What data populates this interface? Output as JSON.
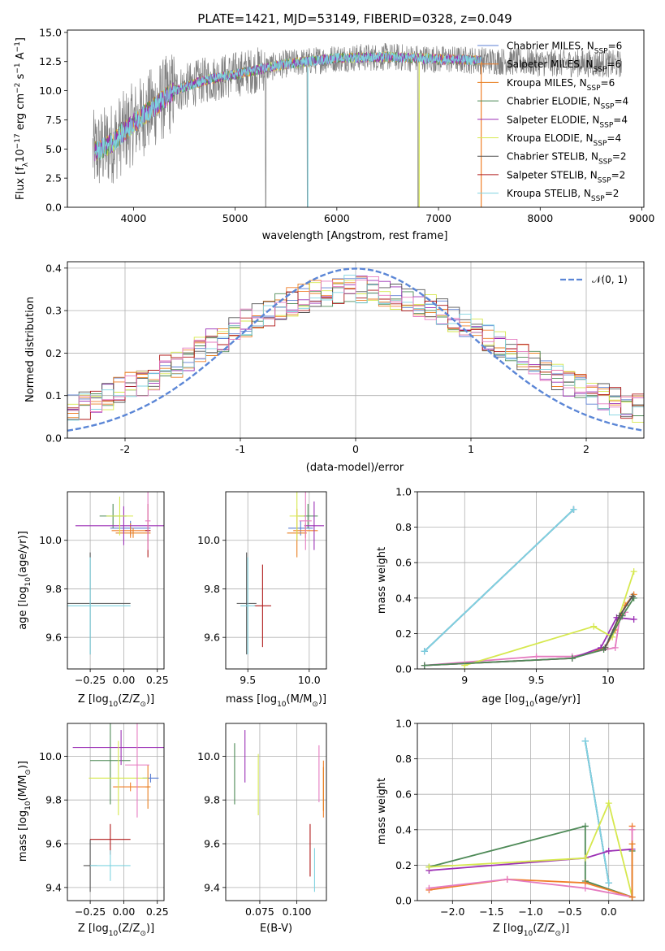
{
  "figure_title": "PLATE=1421, MJD=53149, FIBERID=0328, z=0.049",
  "legend_labels": [
    {
      "base": "Chabrier MILES, N",
      "sub": "SSP",
      "eq": "=6"
    },
    {
      "base": "Salpeter MILES, N",
      "sub": "SSP",
      "eq": "=6"
    },
    {
      "base": "Kroupa MILES, N",
      "sub": "SSP",
      "eq": "=6"
    },
    {
      "base": "Chabrier ELODIE, N",
      "sub": "SSP",
      "eq": "=4"
    },
    {
      "base": "Salpeter ELODIE, N",
      "sub": "SSP",
      "eq": "=4"
    },
    {
      "base": "Kroupa ELODIE, N",
      "sub": "SSP",
      "eq": "=4"
    },
    {
      "base": "Chabrier STELIB, N",
      "sub": "SSP",
      "eq": "=2"
    },
    {
      "base": "Salpeter STELIB, N",
      "sub": "SSP",
      "eq": "=2"
    },
    {
      "base": "Kroupa STELIB, N",
      "sub": "SSP",
      "eq": "=2"
    }
  ],
  "colors": {
    "chabrier_miles": "#5b7fd3",
    "salpeter_miles": "#f07f2a",
    "kroupa_miles": "#e87f20",
    "chabrier_elodie": "#4e8a57",
    "salpeter_elodie": "#9b2fb5",
    "kroupa_elodie": "#d6e84e",
    "chabrier_stelib": "#555555",
    "salpeter_stelib": "#b01a1a",
    "kroupa_stelib": "#7fd3e0",
    "pink": "#e57bc0",
    "observed": "#808080",
    "gaussian": "#5b86d6",
    "grid": "#b0b0b0"
  },
  "chart_data": [
    {
      "id": "spectrum",
      "type": "line",
      "title": "PLATE=1421, MJD=53149, FIBERID=0328, z=0.049",
      "xlabel": "wavelength [Angstrom, rest frame]",
      "ylabel": {
        "pre": "Flux [f",
        "sub": "λ",
        "mid": "10",
        "sup": "−17",
        "post": " erg cm",
        "sup2": "−2",
        "post2": " s",
        "sup3": "−1",
        "post3": " A",
        "sup4": "−1",
        "post4": "]"
      },
      "xlim": [
        3350,
        9020
      ],
      "ylim": [
        0,
        15.2
      ],
      "xticks": [
        4000,
        5000,
        6000,
        7000,
        8000,
        9000
      ],
      "yticks": [
        0.0,
        2.5,
        5.0,
        7.5,
        10.0,
        12.5,
        15.0
      ],
      "ytick_labels": [
        "0.0",
        "2.5",
        "5.0",
        "7.5",
        "10.0",
        "12.5",
        "15.0"
      ],
      "grid": false,
      "legend_position": "right",
      "observed_x_range": [
        3600,
        8800
      ],
      "model_x_range": [
        3620,
        7420
      ],
      "continuum": [
        [
          3650,
          4.8
        ],
        [
          3800,
          5.6
        ],
        [
          4000,
          7.2
        ],
        [
          4200,
          8.6
        ],
        [
          4400,
          10.0
        ],
        [
          4700,
          10.9
        ],
        [
          5000,
          11.4
        ],
        [
          5500,
          12.3
        ],
        [
          6000,
          12.8
        ],
        [
          6500,
          12.9
        ],
        [
          7000,
          12.7
        ],
        [
          7400,
          12.6
        ],
        [
          8000,
          12.4
        ],
        [
          8700,
          12.3
        ]
      ]
    },
    {
      "id": "residuals",
      "type": "histogram",
      "xlabel": "(data-model)/error",
      "ylabel": "Normed distribution",
      "xlim": [
        -2.5,
        2.5
      ],
      "ylim": [
        0,
        0.415
      ],
      "xticks": [
        -2,
        -1,
        0,
        1,
        2
      ],
      "yticks": [
        0.0,
        0.1,
        0.2,
        0.3,
        0.4
      ],
      "ytick_labels": [
        "0.0",
        "0.1",
        "0.2",
        "0.3",
        "0.4"
      ],
      "grid": true,
      "legend_position": "upper right",
      "legend_label": "𝒩(0, 1)",
      "bins": 50
    },
    {
      "id": "age_vs_Z",
      "type": "scatter",
      "xlabel": {
        "pre": "Z [log",
        "sub": "10",
        "post": "(Z/Z",
        "sub2": "⊙",
        "post2": ")]"
      },
      "ylabel": {
        "pre": "age  [log",
        "sub": "10",
        "post": "(age/yr)]"
      },
      "xlim": [
        -0.42,
        0.3
      ],
      "ylim": [
        9.47,
        10.2
      ],
      "xticks": [
        -0.25,
        0.0,
        0.25
      ],
      "xtick_labels": [
        "−0.25",
        "0.00",
        "0.25"
      ],
      "yticks": [
        9.6,
        9.8,
        10.0
      ],
      "grid": true,
      "points": [
        {
          "c": "chabrier_miles",
          "x": 0.05,
          "y": 10.05,
          "xe": 0.15,
          "ye": 0.03
        },
        {
          "c": "salpeter_miles",
          "x": 0.05,
          "y": 10.04,
          "xe": 0.14,
          "ye": 0.03
        },
        {
          "c": "kroupa_miles",
          "x": 0.07,
          "y": 10.03,
          "xe": 0.13,
          "ye": 0.02
        },
        {
          "c": "chabrier_elodie",
          "x": -0.08,
          "y": 10.1,
          "xe": 0.1,
          "ye": 0.05
        },
        {
          "c": "salpeter_elodie",
          "x": 0.0,
          "y": 10.06,
          "xe": 0.36,
          "ye": 0.08
        },
        {
          "c": "kroupa_elodie",
          "x": -0.03,
          "y": 10.1,
          "xe": 0.1,
          "ye": 0.08
        },
        {
          "c": "chabrier_stelib",
          "x": -0.25,
          "y": 9.74,
          "xe": 0.3,
          "ye": 0.21
        },
        {
          "c": "salpeter_stelib",
          "x": 0.18,
          "y": 10.04,
          "xe": 0.02,
          "ye": 0.11
        },
        {
          "c": "kroupa_stelib",
          "x": -0.25,
          "y": 9.73,
          "xe": 0.3,
          "ye": 0.2
        },
        {
          "c": "pink",
          "x": 0.18,
          "y": 10.08,
          "xe": 0.02,
          "ye": 0.12
        }
      ]
    },
    {
      "id": "age_vs_mass",
      "type": "scatter",
      "xlabel": {
        "pre": "mass [log",
        "sub": "10",
        "post": "(M/M",
        "sub2": "⊙",
        "post2": ")]"
      },
      "ylabel": "",
      "xlim": [
        9.32,
        10.14
      ],
      "ylim": [
        9.47,
        10.2
      ],
      "xticks": [
        9.5,
        10.0
      ],
      "xtick_labels": [
        "9.5",
        "10.0"
      ],
      "yticks": [
        9.6,
        9.8,
        10.0
      ],
      "grid": true,
      "points": [
        {
          "c": "chabrier_miles",
          "x": 9.93,
          "y": 10.05,
          "xe": 0.1,
          "ye": 0.03
        },
        {
          "c": "salpeter_miles",
          "x": 9.97,
          "y": 10.04,
          "xe": 0.1,
          "ye": 0.03
        },
        {
          "c": "kroupa_miles",
          "x": 9.9,
          "y": 10.03,
          "xe": 0.08,
          "ye": 0.1
        },
        {
          "c": "chabrier_elodie",
          "x": 9.99,
          "y": 10.1,
          "xe": 0.08,
          "ye": 0.05
        },
        {
          "c": "salpeter_elodie",
          "x": 10.04,
          "y": 10.06,
          "xe": 0.08,
          "ye": 0.1
        },
        {
          "c": "kroupa_elodie",
          "x": 9.9,
          "y": 10.1,
          "xe": 0.06,
          "ye": 0.1
        },
        {
          "c": "chabrier_stelib",
          "x": 9.49,
          "y": 9.74,
          "xe": 0.08,
          "ye": 0.21
        },
        {
          "c": "salpeter_stelib",
          "x": 9.62,
          "y": 9.73,
          "xe": 0.07,
          "ye": 0.17
        },
        {
          "c": "kroupa_stelib",
          "x": 9.5,
          "y": 9.73,
          "xe": 0.06,
          "ye": 0.2
        },
        {
          "c": "pink",
          "x": 9.97,
          "y": 10.08,
          "xe": 0.05,
          "ye": 0.12
        }
      ]
    },
    {
      "id": "mass_weight_vs_age",
      "type": "line",
      "xlabel": {
        "pre": "age  [log",
        "sub": "10",
        "post": "(age/yr)]"
      },
      "ylabel": "mass weight",
      "xlim": [
        8.67,
        10.25
      ],
      "ylim": [
        0,
        1.0
      ],
      "xticks": [
        9.0,
        9.5,
        10.0
      ],
      "yticks": [
        0.0,
        0.2,
        0.4,
        0.6,
        0.8,
        1.0
      ],
      "grid": true,
      "series": [
        {
          "c": "chabrier_stelib",
          "x": [
            8.72,
            9.76
          ],
          "y": [
            0.1,
            0.9
          ]
        },
        {
          "c": "chabrier_miles",
          "x": [
            8.72,
            9.76
          ],
          "y": [
            0.1,
            0.9
          ]
        },
        {
          "c": "kroupa_stelib",
          "x": [
            8.72,
            9.76
          ],
          "y": [
            0.1,
            0.9
          ]
        },
        {
          "c": "salpeter_miles",
          "x": [
            8.72,
            9.75,
            9.98,
            10.05,
            10.12,
            10.18
          ],
          "y": [
            0.02,
            0.06,
            0.12,
            0.22,
            0.36,
            0.42
          ]
        },
        {
          "c": "pink",
          "x": [
            8.72,
            9.5,
            9.75,
            10.05,
            10.08,
            10.12
          ],
          "y": [
            0.02,
            0.07,
            0.07,
            0.12,
            0.28,
            0.32
          ]
        },
        {
          "c": "salpeter_elodie",
          "x": [
            8.72,
            9.75,
            9.95,
            10.06,
            10.18
          ],
          "y": [
            0.02,
            0.06,
            0.12,
            0.29,
            0.28
          ]
        },
        {
          "c": "kroupa_elodie",
          "x": [
            9.0,
            9.9,
            10.03,
            10.18
          ],
          "y": [
            0.02,
            0.24,
            0.18,
            0.55
          ]
        },
        {
          "c": "chabrier_elodie",
          "x": [
            8.72,
            9.75,
            9.97,
            10.1,
            10.18
          ],
          "y": [
            0.02,
            0.06,
            0.11,
            0.3,
            0.4
          ]
        },
        {
          "c": "chabrier_stelib",
          "x": [
            9.98,
            10.08,
            10.17
          ],
          "y": [
            0.12,
            0.3,
            0.41
          ]
        }
      ]
    },
    {
      "id": "mass_vs_Z",
      "type": "scatter",
      "xlabel": {
        "pre": "Z [log",
        "sub": "10",
        "post": "(Z/Z",
        "sub2": "⊙",
        "post2": ")]"
      },
      "ylabel": {
        "pre": "mass [log",
        "sub": "10",
        "post": "(M/M",
        "sub2": "⊙",
        "post2": ")]"
      },
      "xlim": [
        -0.42,
        0.3
      ],
      "ylim": [
        9.34,
        10.15
      ],
      "xticks": [
        -0.25,
        0.0,
        0.25
      ],
      "xtick_labels": [
        "−0.25",
        "0.00",
        "0.25"
      ],
      "yticks": [
        9.4,
        9.6,
        9.8,
        10.0
      ],
      "grid": true,
      "points": [
        {
          "c": "chabrier_miles",
          "x": 0.2,
          "y": 9.9,
          "xe": 0.06,
          "ye": 0.02
        },
        {
          "c": "salpeter_miles",
          "x": 0.05,
          "y": 9.86,
          "xe": 0.13,
          "ye": 0.02
        },
        {
          "c": "kroupa_miles",
          "x": 0.18,
          "y": 9.86,
          "xe": 0.02,
          "ye": 0.1
        },
        {
          "c": "chabrier_elodie",
          "x": -0.1,
          "y": 9.98,
          "xe": 0.15,
          "ye": 0.2
        },
        {
          "c": "salpeter_elodie",
          "x": -0.02,
          "y": 10.04,
          "xe": 0.36,
          "ye": 0.08
        },
        {
          "c": "kroupa_elodie",
          "x": -0.04,
          "y": 9.9,
          "xe": 0.22,
          "ye": 0.17
        },
        {
          "c": "chabrier_stelib",
          "x": -0.25,
          "y": 9.5,
          "xe": 0.05,
          "ye": 0.12
        },
        {
          "c": "salpeter_stelib",
          "x": -0.1,
          "y": 9.62,
          "xe": 0.15,
          "ye": 0.07
        },
        {
          "c": "kroupa_stelib",
          "x": -0.1,
          "y": 9.5,
          "xe": 0.15,
          "ye": 0.07
        },
        {
          "c": "pink",
          "x": 0.1,
          "y": 9.96,
          "xe": 0.09,
          "ye": 0.24
        }
      ]
    },
    {
      "id": "mass_vs_ebv",
      "type": "scatter",
      "xlabel": "E(B-V)",
      "ylabel": "",
      "xlim": [
        0.052,
        0.12
      ],
      "ylim": [
        9.34,
        10.15
      ],
      "xticks": [
        0.075,
        0.1
      ],
      "xtick_labels": [
        "0.075",
        "0.100"
      ],
      "yticks": [
        9.4,
        9.6,
        9.8,
        10.0
      ],
      "grid": true,
      "points": [
        {
          "c": "chabrier_elodie",
          "x": 0.058,
          "y": 9.92,
          "xe": 0,
          "ye": 0.14
        },
        {
          "c": "salpeter_elodie",
          "x": 0.065,
          "y": 10.0,
          "xe": 0,
          "ye": 0.12
        },
        {
          "c": "kroupa_elodie",
          "x": 0.074,
          "y": 9.87,
          "xe": 0,
          "ye": 0.14
        },
        {
          "c": "salpeter_stelib",
          "x": 0.109,
          "y": 9.57,
          "xe": 0,
          "ye": 0.12
        },
        {
          "c": "kroupa_stelib",
          "x": 0.112,
          "y": 9.48,
          "xe": 0,
          "ye": 0.1
        },
        {
          "c": "pink",
          "x": 0.115,
          "y": 9.92,
          "xe": 0,
          "ye": 0.13
        },
        {
          "c": "salpeter_miles",
          "x": 0.118,
          "y": 9.85,
          "xe": 0,
          "ye": 0.13
        },
        {
          "c": "kroupa_miles",
          "x": 0.118,
          "y": 9.85,
          "xe": 0,
          "ye": 0.1
        }
      ]
    },
    {
      "id": "mass_weight_vs_Z",
      "type": "line",
      "xlabel": {
        "pre": "Z [log",
        "sub": "10",
        "post": "(Z/Z",
        "sub2": "⊙",
        "post2": ")]"
      },
      "ylabel": "mass weight",
      "xlim": [
        -2.45,
        0.45
      ],
      "ylim": [
        0,
        1.0
      ],
      "xticks": [
        -2.0,
        -1.5,
        -1.0,
        -0.5,
        0.0
      ],
      "xtick_labels": [
        "−2.0",
        "−1.5",
        "−1.0",
        "−0.5",
        "0.0"
      ],
      "yticks": [
        0.0,
        0.2,
        0.4,
        0.6,
        0.8,
        1.0
      ],
      "grid": true,
      "series": [
        {
          "c": "chabrier_stelib",
          "x": [
            -0.3,
            0.0
          ],
          "y": [
            0.9,
            0.1
          ]
        },
        {
          "c": "chabrier_miles",
          "x": [
            -0.3,
            0.0
          ],
          "y": [
            0.9,
            0.1
          ]
        },
        {
          "c": "kroupa_stelib",
          "x": [
            -0.3,
            0.0
          ],
          "y": [
            0.9,
            0.1
          ]
        },
        {
          "c": "chabrier_elodie",
          "x": [
            -2.3,
            -0.3,
            -0.3,
            0.3,
            0.3
          ],
          "y": [
            0.19,
            0.42,
            0.11,
            0.02,
            0.28
          ]
        },
        {
          "c": "salpeter_miles",
          "x": [
            -2.3,
            -1.3,
            -0.3,
            0.3,
            0.3
          ],
          "y": [
            0.06,
            0.12,
            0.1,
            0.02,
            0.42
          ]
        },
        {
          "c": "salpeter_elodie",
          "x": [
            -2.3,
            -0.3,
            0.0,
            0.3
          ],
          "y": [
            0.17,
            0.24,
            0.28,
            0.29
          ]
        },
        {
          "c": "kroupa_elodie",
          "x": [
            -2.3,
            -0.3,
            0.0,
            0.3
          ],
          "y": [
            0.19,
            0.24,
            0.55,
            0.02
          ]
        },
        {
          "c": "pink",
          "x": [
            -2.3,
            -1.3,
            -0.3,
            0.3,
            0.3
          ],
          "y": [
            0.07,
            0.12,
            0.07,
            0.02,
            0.4
          ]
        },
        {
          "c": "kroupa_miles",
          "x": [
            0.3,
            0.3
          ],
          "y": [
            0.02,
            0.32
          ]
        }
      ]
    }
  ]
}
